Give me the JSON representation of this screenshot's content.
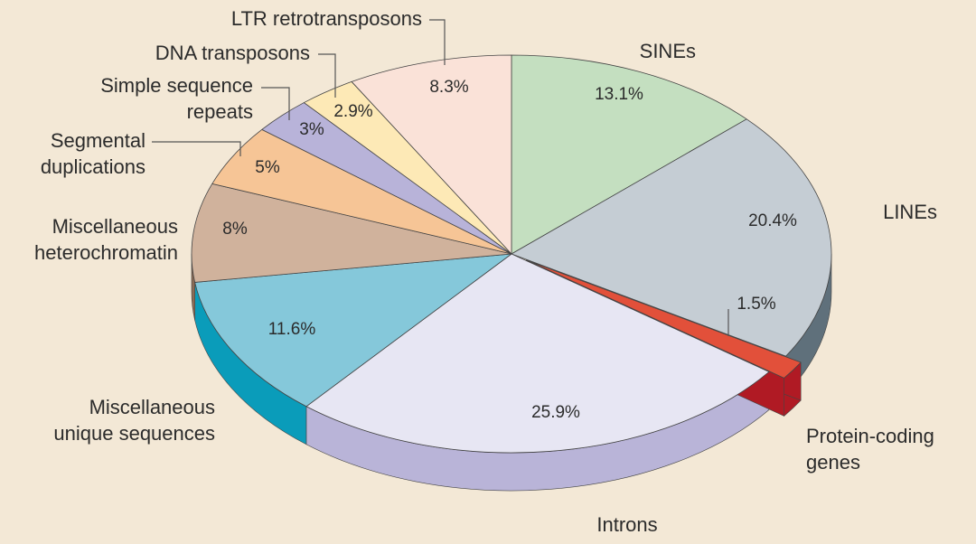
{
  "chart_data": {
    "type": "pie",
    "title": "",
    "start_angle_deg": 0,
    "slices": [
      {
        "name": "SINEs",
        "value": 13.1,
        "label": "13.1%",
        "color": "#c4dfc0",
        "side": "#8fb889"
      },
      {
        "name": "LINEs",
        "value": 20.4,
        "label": "20.4%",
        "color": "#c5cdd4",
        "side": "#5f707b"
      },
      {
        "name": "Protein-coding genes",
        "value": 1.5,
        "label": "1.5%",
        "color": "#e2503a",
        "side": "#b01a24",
        "explode": true
      },
      {
        "name": "Introns",
        "value": 25.9,
        "label": "25.9%",
        "color": "#e7e6f3",
        "side": "#b9b4d8"
      },
      {
        "name": "Miscellaneous unique sequences",
        "value": 11.6,
        "label": "11.6%",
        "color": "#85c8da",
        "side": "#0a9cba"
      },
      {
        "name": "Miscellaneous heterochromatin",
        "value": 8,
        "label": "8%",
        "color": "#d0b29c",
        "side": "#8a6b55"
      },
      {
        "name": "Segmental duplications",
        "value": 5,
        "label": "5%",
        "color": "#f6c596",
        "side": "#d49360"
      },
      {
        "name": "Simple sequence repeats",
        "value": 3,
        "label": "3%",
        "color": "#b8b3d9",
        "side": "#8a84b8"
      },
      {
        "name": "DNA transposons",
        "value": 2.9,
        "label": "2.9%",
        "color": "#fde9b6",
        "side": "#d7be7c"
      },
      {
        "name": "LTR retrotransposons",
        "value": 8.3,
        "label": "8.3%",
        "color": "#fae2d8",
        "side": "#d8b6a6"
      }
    ],
    "legend": {
      "sines": "SINEs",
      "lines": "LINEs",
      "protein_coding_1": "Protein-coding",
      "protein_coding_2": "genes",
      "introns": "Introns",
      "unique_1": "Miscellaneous",
      "unique_2": "unique sequences",
      "hetero_1": "Miscellaneous",
      "hetero_2": "heterochromatin",
      "segdup_1": "Segmental",
      "segdup_2": "duplications",
      "ssr_1": "Simple sequence",
      "ssr_2": "repeats",
      "dna": "DNA transposons",
      "ltr": "LTR retrotransposons"
    }
  }
}
